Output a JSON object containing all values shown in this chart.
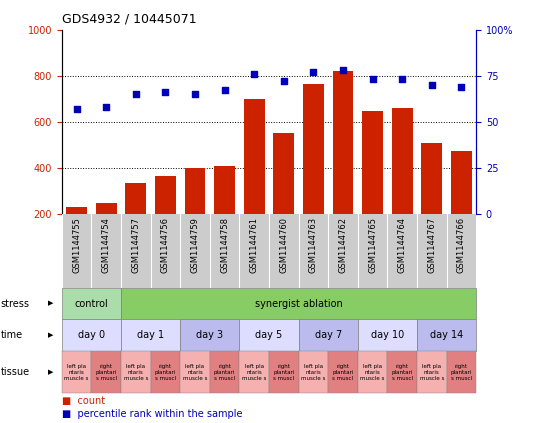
{
  "title": "GDS4932 / 10445071",
  "samples": [
    "GSM1144755",
    "GSM1144754",
    "GSM1144757",
    "GSM1144756",
    "GSM1144759",
    "GSM1144758",
    "GSM1144761",
    "GSM1144760",
    "GSM1144763",
    "GSM1144762",
    "GSM1144765",
    "GSM1144764",
    "GSM1144767",
    "GSM1144766"
  ],
  "counts": [
    228,
    247,
    335,
    363,
    400,
    408,
    700,
    552,
    762,
    820,
    648,
    660,
    505,
    473
  ],
  "percentiles": [
    57,
    58,
    65,
    66,
    65,
    67,
    76,
    72,
    77,
    78,
    73,
    73,
    70,
    69
  ],
  "bar_color": "#cc2200",
  "dot_color": "#0000bb",
  "ylim_left": [
    200,
    1000
  ],
  "ylim_right": [
    0,
    100
  ],
  "yticks_left": [
    200,
    400,
    600,
    800,
    1000
  ],
  "ytick_labels_left": [
    "200",
    "400",
    "600",
    "800",
    "1000"
  ],
  "yticks_right": [
    0,
    25,
    50,
    75,
    100
  ],
  "ytick_labels_right": [
    "0",
    "25",
    "50",
    "75",
    "100%"
  ],
  "grid_dotted_lines": [
    400,
    600,
    800
  ],
  "stress_groups": [
    {
      "text": "control",
      "start": 0,
      "end": 2,
      "color": "#aaddaa"
    },
    {
      "text": "synergist ablation",
      "start": 2,
      "end": 14,
      "color": "#88cc66"
    }
  ],
  "time_groups": [
    {
      "text": "day 0",
      "start": 0,
      "end": 2,
      "color": "#ddddff"
    },
    {
      "text": "day 1",
      "start": 2,
      "end": 4,
      "color": "#ddddff"
    },
    {
      "text": "day 3",
      "start": 4,
      "end": 6,
      "color": "#bbbbee"
    },
    {
      "text": "day 5",
      "start": 6,
      "end": 8,
      "color": "#ddddff"
    },
    {
      "text": "day 7",
      "start": 8,
      "end": 10,
      "color": "#bbbbee"
    },
    {
      "text": "day 10",
      "start": 10,
      "end": 12,
      "color": "#ddddff"
    },
    {
      "text": "day 14",
      "start": 12,
      "end": 14,
      "color": "#bbbbee"
    }
  ],
  "tissue_light_color": "#f5b0b0",
  "tissue_dark_color": "#e08080",
  "tissue_labels": [
    "left pla\nntaris\nmuscle s",
    "right\nplantari\ns muscl",
    "left pla\nntaris\nmuscle s",
    "right\nplantari\ns muscl",
    "left pla\nntaris\nmuscle s",
    "right\nplantari\ns muscl",
    "left pla\nntaris\nmuscle s",
    "right\nplantari\ns muscl",
    "left pla\nntaris\nmuscle s",
    "right\nplantari\ns muscl",
    "left pla\nntaris\nmuscle s",
    "right\nplantari\ns muscl",
    "left pla\nntaris\nmuscle s",
    "right\nplantari\ns muscl"
  ],
  "row_labels": [
    "stress",
    "time",
    "tissue"
  ],
  "plot_bg": "#ffffff",
  "xlabel_area_bg": "#cccccc",
  "title_fontsize": 9,
  "axis_tick_fontsize": 7,
  "bar_label_fontsize": 6,
  "row_label_fontsize": 7,
  "time_label_fontsize": 7,
  "tissue_label_fontsize": 4
}
